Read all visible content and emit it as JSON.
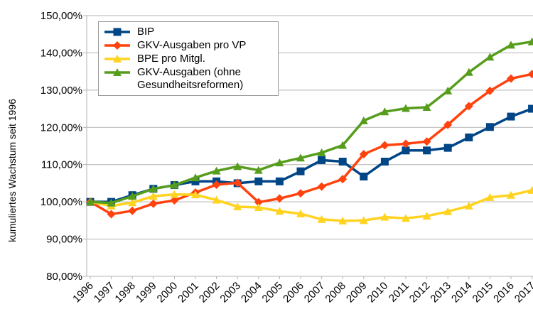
{
  "chart_data": {
    "type": "line",
    "y_label": "kumuliertes Wachstum seit 1996",
    "x": [
      1996,
      1997,
      1998,
      1999,
      2000,
      2001,
      2002,
      2003,
      2004,
      2005,
      2006,
      2007,
      2008,
      2009,
      2010,
      2011,
      2012,
      2013,
      2014,
      2015,
      2016,
      2017
    ],
    "ylim": [
      80,
      150
    ],
    "yticks": [
      {
        "value": 80,
        "label": "80,00%"
      },
      {
        "value": 90,
        "label": "90,00%"
      },
      {
        "value": 100,
        "label": "100,00%"
      },
      {
        "value": 110,
        "label": "110,00%"
      },
      {
        "value": 120,
        "label": "120,00%"
      },
      {
        "value": 130,
        "label": "130,00%"
      },
      {
        "value": 140,
        "label": "140,00%"
      },
      {
        "value": 150,
        "label": "150,00%"
      }
    ],
    "grid": true,
    "legend": "upper left",
    "series": [
      {
        "name": "BIP",
        "color": "#004586",
        "marker": "square",
        "values": [
          100,
          100,
          101.8,
          103.5,
          104.5,
          105.5,
          105.5,
          105,
          105.5,
          105.5,
          108.2,
          111.2,
          110.8,
          106.8,
          110.8,
          113.8,
          113.8,
          114.5,
          117.3,
          120.1,
          122.9,
          125
        ]
      },
      {
        "name": "GKV-Ausgaben pro VP",
        "color": "#ff420e",
        "marker": "diamond",
        "values": [
          100,
          96.7,
          97.6,
          99.5,
          100.4,
          102.5,
          104.6,
          105.1,
          99.9,
          100.9,
          102.3,
          104.1,
          106.1,
          112.8,
          115.2,
          115.6,
          116.2,
          120.7,
          125.7,
          129.8,
          133.1,
          134.3
        ]
      },
      {
        "name": "BPE pro Mitgl.",
        "color": "#ffd320",
        "marker": "triangle",
        "values": [
          100,
          98.9,
          99.8,
          101.5,
          102,
          101.9,
          100.5,
          98.7,
          98.5,
          97.5,
          96.8,
          95.3,
          94.9,
          95,
          95.9,
          95.6,
          96.2,
          97.4,
          98.9,
          101.2,
          101.8,
          103.1
        ]
      },
      {
        "name": "GKV-Ausgaben (ohne Gesundheitsreformen)",
        "color": "#579d1c",
        "marker": "triangle",
        "values": [
          100,
          99.7,
          101.5,
          103.5,
          104.5,
          106.5,
          108.3,
          109.5,
          108.5,
          110.5,
          111.8,
          113.2,
          115.2,
          121.8,
          124.2,
          125.1,
          125.4,
          129.8,
          134.8,
          138.9,
          142.1,
          143
        ]
      }
    ]
  }
}
